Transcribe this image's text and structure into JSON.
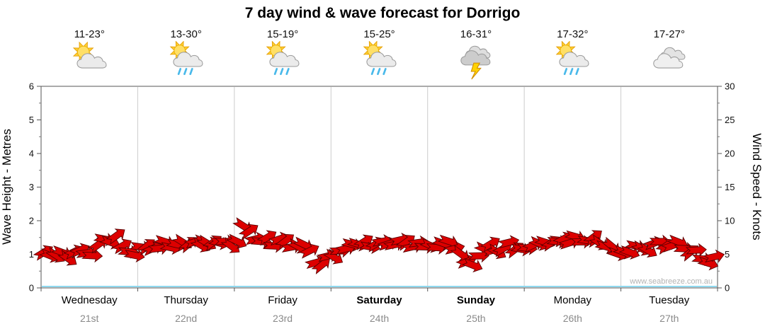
{
  "title": "7 day wind & wave forecast for Dorrigo",
  "watermark": "www.seabreeze.com.au",
  "days": [
    {
      "name": "Wednesday",
      "date": "21st",
      "temp": "11-23°",
      "icon": "sun-cloud",
      "bold": false
    },
    {
      "name": "Thursday",
      "date": "22nd",
      "temp": "13-30°",
      "icon": "sun-cloud-rain",
      "bold": false
    },
    {
      "name": "Friday",
      "date": "23rd",
      "temp": "15-19°",
      "icon": "sun-cloud-rain",
      "bold": false
    },
    {
      "name": "Saturday",
      "date": "24th",
      "temp": "15-25°",
      "icon": "sun-cloud-rain",
      "bold": true
    },
    {
      "name": "Sunday",
      "date": "25th",
      "temp": "16-31°",
      "icon": "storm",
      "bold": true
    },
    {
      "name": "Monday",
      "date": "26th",
      "temp": "17-32°",
      "icon": "sun-cloud-rain",
      "bold": false
    },
    {
      "name": "Tuesday",
      "date": "27th",
      "temp": "17-27°",
      "icon": "clouds",
      "bold": false
    }
  ],
  "chart_data": {
    "type": "line",
    "title": "7 day wind & wave forecast for Dorrigo",
    "x_categories": [
      "Wednesday 21st",
      "Thursday 22nd",
      "Friday 23rd",
      "Saturday 24th",
      "Sunday 25th",
      "Monday 26th",
      "Tuesday 27th"
    ],
    "samples_per_day": 16,
    "left_axis": {
      "label": "Wave Height - Metres",
      "min": 0,
      "max": 6,
      "tick_step": 1,
      "minor_step": 0.5
    },
    "right_axis": {
      "label": "Wind Speed - Knots",
      "min": 0,
      "max": 30,
      "tick_step": 5,
      "minor_step": 2.5
    },
    "grid": "vertical day separators",
    "legend": "none",
    "series": [
      {
        "name": "Wind Speed",
        "unit": "knots",
        "style": "wind-arrows",
        "color": "#dd0000",
        "values": [
          5,
          4.6,
          5.2,
          5,
          4.7,
          5,
          5.4,
          5.2,
          5,
          6.8,
          7.2,
          6.6,
          7.9,
          6.4,
          5.6,
          5.2,
          6,
          6.4,
          6.1,
          5.8,
          6.6,
          6.3,
          6.2,
          6.6,
          6.4,
          6.8,
          6.2,
          6.6,
          7,
          6.4,
          6.8,
          6.5,
          7,
          9.3,
          8.4,
          7.2,
          6.8,
          7.4,
          6.6,
          7,
          6.8,
          6.4,
          6.2,
          6.6,
          5.2,
          4,
          3.6,
          4.4,
          4.6,
          5.4,
          6.2,
          6.6,
          6.4,
          6.8,
          6.2,
          6.6,
          7,
          6.4,
          6.8,
          7.4,
          6.6,
          6.2,
          6.8,
          6.4,
          6.2,
          5.8,
          6.4,
          6.6,
          6,
          5.4,
          4.2,
          3.4,
          4.6,
          5.8,
          6.2,
          5.6,
          6,
          6.4,
          5.8,
          5.4,
          5.6,
          6,
          6.6,
          7,
          6.4,
          6.8,
          7.4,
          7,
          7.6,
          7.2,
          6.8,
          7.4,
          6.6,
          6.2,
          5.8,
          5.4,
          5.2,
          5.6,
          6,
          5.6,
          5.2,
          6.4,
          7,
          6.6,
          6.2,
          6.8,
          6,
          5.6,
          5.2,
          4.4,
          3.8,
          4.8
        ]
      },
      {
        "name": "Wave Height",
        "unit": "metres",
        "style": "line",
        "color": "#8fd9ef",
        "constant_value": 0
      }
    ]
  }
}
